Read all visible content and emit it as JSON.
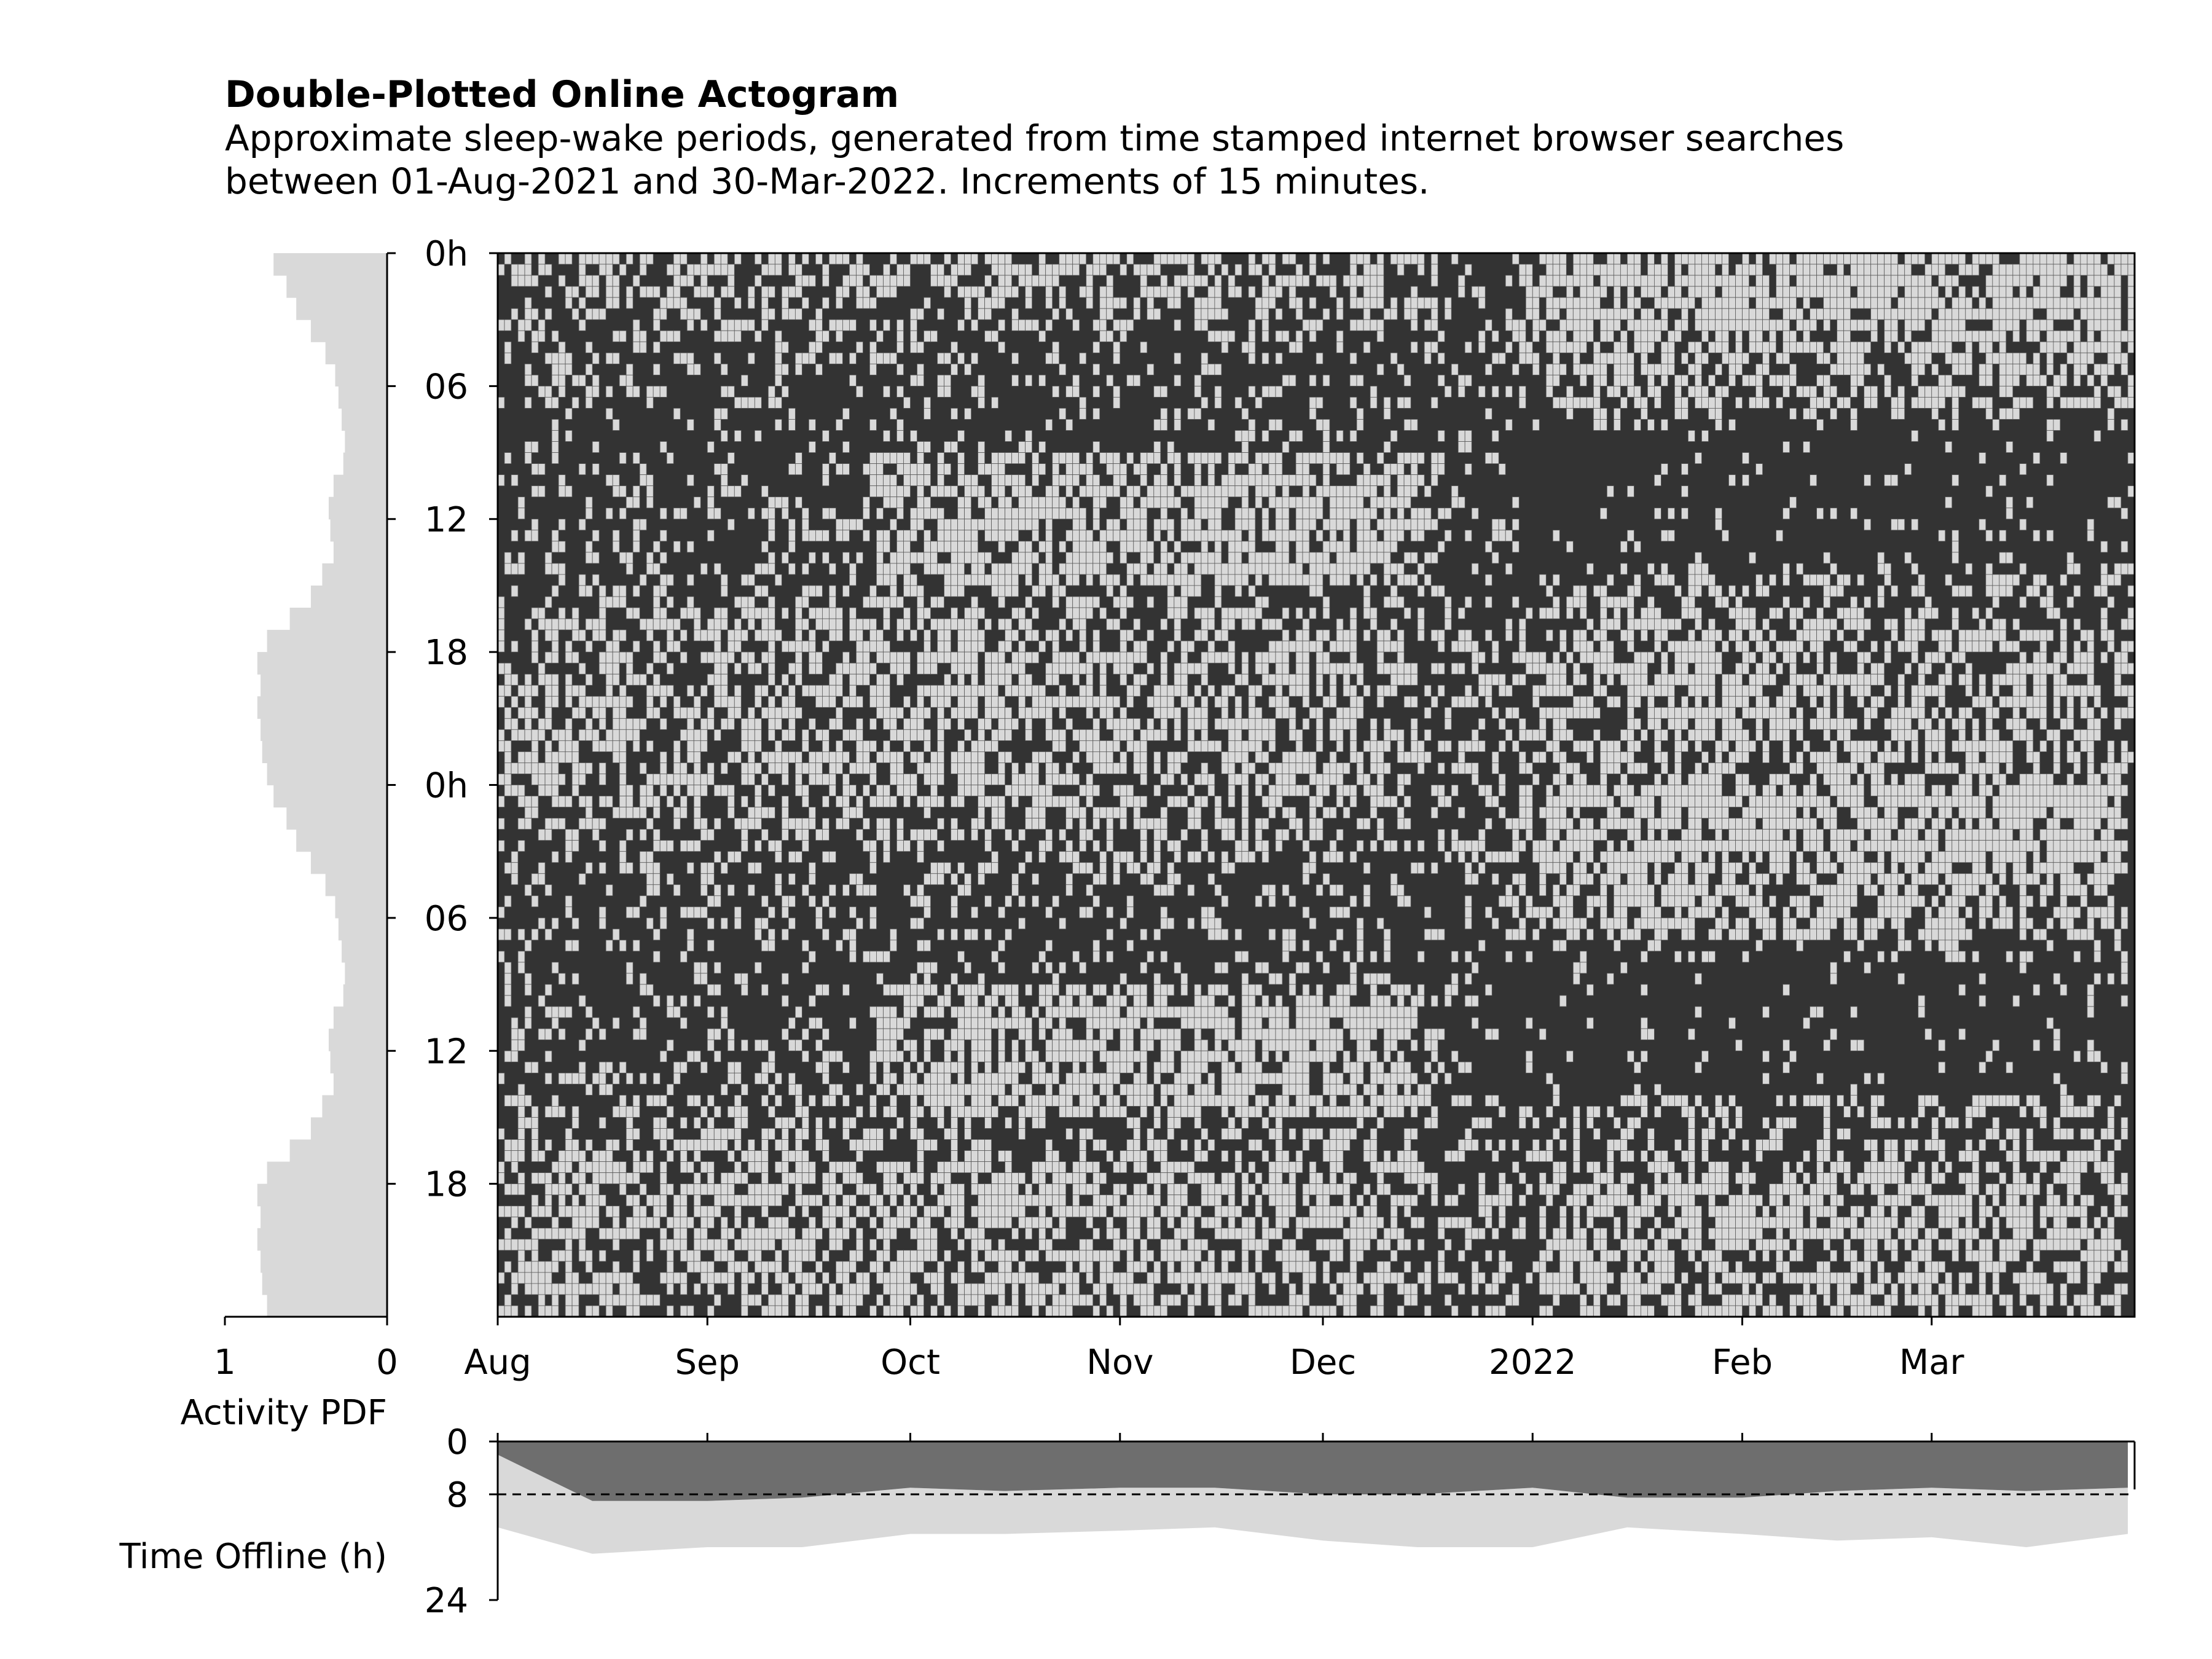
{
  "title": "Double-Plotted Online Actogram",
  "subtitle": "Approximate sleep-wake periods, generated from time stamped internet browser searches\nbetween 01-Aug-2021 and 30-Mar-2022. Increments of 15 minutes.",
  "colors": {
    "online": "#d9d9d9",
    "offline": "#333333",
    "grid_line": "#5a5a5a",
    "offline_fill": "#6e6e6e",
    "bar_fill": "#d9d9d9"
  },
  "chart_data": [
    {
      "type": "heatmap",
      "name": "actogram",
      "date_range": [
        "2021-08-01",
        "2022-03-30"
      ],
      "increment_minutes": 15,
      "y_tick_labels": [
        "0h",
        "06",
        "12",
        "18",
        "0h",
        "06",
        "12",
        "18"
      ],
      "y_tick_hours": [
        0,
        6,
        12,
        18,
        24,
        30,
        36,
        42
      ],
      "ylim_hours": [
        0,
        48
      ],
      "x_tick_labels": [
        "Aug",
        "Sep",
        "Oct",
        "Nov",
        "Dec",
        "2022",
        "Feb",
        "Mar"
      ],
      "x_tick_dates": [
        "2021-08-01",
        "2021-09-01",
        "2021-10-01",
        "2021-11-01",
        "2021-12-01",
        "2022-01-01",
        "2022-02-01",
        "2022-03-01"
      ],
      "cell_values": [
        "online",
        "offline"
      ]
    },
    {
      "type": "bar",
      "name": "activity-pdf",
      "xlabel": "Activity PDF",
      "x_tick_labels": [
        "1",
        "0"
      ],
      "xlim": [
        1,
        0
      ],
      "orientation": "horizontal",
      "hours": [
        0,
        1,
        2,
        3,
        4,
        5,
        6,
        7,
        8,
        9,
        10,
        11,
        12,
        13,
        14,
        15,
        16,
        17,
        18,
        19,
        20,
        21,
        22,
        23
      ],
      "values": [
        0.7,
        0.62,
        0.56,
        0.47,
        0.38,
        0.32,
        0.3,
        0.28,
        0.26,
        0.27,
        0.33,
        0.36,
        0.35,
        0.33,
        0.4,
        0.47,
        0.6,
        0.74,
        0.8,
        0.78,
        0.8,
        0.78,
        0.77,
        0.74
      ]
    },
    {
      "type": "area",
      "name": "time-offline",
      "ylabel": "Time Offline (h)",
      "y_tick_labels": [
        "0",
        "8",
        "24"
      ],
      "y_ticks": [
        0,
        8,
        24
      ],
      "ylim": [
        24,
        0
      ],
      "reference_line": 8,
      "x": [
        "2021-08-01",
        "2021-08-15",
        "2021-09-01",
        "2021-09-15",
        "2021-10-01",
        "2021-10-15",
        "2021-11-01",
        "2021-11-15",
        "2021-12-01",
        "2021-12-15",
        "2022-01-01",
        "2022-01-15",
        "2022-02-01",
        "2022-02-15",
        "2022-03-01",
        "2022-03-15",
        "2022-03-30"
      ],
      "series": [
        {
          "values": [
            2,
            9,
            9,
            8.5,
            7,
            7.5,
            7,
            7,
            8,
            8,
            7,
            8.5,
            8.5,
            7.5,
            7,
            7.5,
            7
          ]
        },
        {
          "values": [
            13,
            17,
            16,
            16,
            14,
            14,
            13.5,
            13,
            15,
            16,
            16,
            13,
            14,
            15,
            14.5,
            16,
            14
          ]
        }
      ]
    }
  ]
}
